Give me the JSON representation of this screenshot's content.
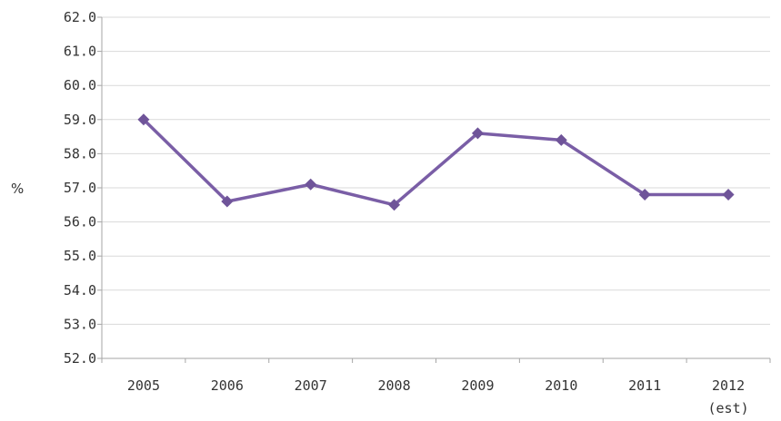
{
  "chart_data": {
    "type": "line",
    "categories": [
      "2005",
      "2006",
      "2007",
      "2008",
      "2009",
      "2010",
      "2011",
      "2012"
    ],
    "category_sublabels": [
      "",
      "",
      "",
      "",
      "",
      "",
      "",
      "(est)"
    ],
    "series": [
      {
        "values": [
          59.0,
          56.6,
          57.1,
          56.5,
          58.6,
          58.4,
          56.8,
          56.8
        ]
      }
    ],
    "ylabel": "%",
    "xlabel": "",
    "title": "",
    "ylim": [
      52.0,
      62.0
    ],
    "ytick_step": 1.0,
    "ytick_labels": [
      "52.0",
      "53.0",
      "54.0",
      "55.0",
      "56.0",
      "57.0",
      "58.0",
      "59.0",
      "60.0",
      "61.0",
      "62.0"
    ],
    "grid": true,
    "legend": "none",
    "marker": "diamond",
    "colors": {
      "line": "#7a5ea6",
      "marker": "#6f5499",
      "grid": "#d9d9d9",
      "axis": "#a6a6a6"
    }
  }
}
